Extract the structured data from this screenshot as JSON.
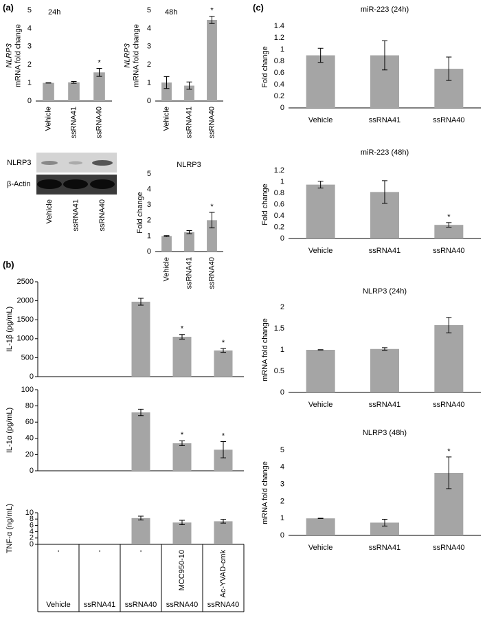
{
  "panel_labels": [
    "(a)",
    "(b)",
    "(c)"
  ],
  "blot": {
    "rows": [
      "NLRP3",
      "β-Actin"
    ],
    "lanes": [
      "Vehicle",
      "ssRNA41",
      "ssRNA40"
    ]
  },
  "chart_data": [
    {
      "type": "bar",
      "title": "24h",
      "ylabel": [
        "NLRP3",
        "mRNA fold change"
      ],
      "categories": [
        "Vehicle",
        "ssRNA41",
        "ssRNA40"
      ],
      "series": [
        {
          "color": "#a5a5a5",
          "values": [
            1,
            1.03,
            1.58
          ],
          "errors": [
            0.01,
            0.05,
            0.22
          ]
        }
      ],
      "significance": [
        null,
        null,
        "*"
      ],
      "ylim": [
        0,
        5
      ],
      "yticks": [
        0,
        1,
        2,
        3,
        4,
        5
      ]
    },
    {
      "type": "bar",
      "title": "48h",
      "ylabel": [
        "NLRP3",
        "mRNA fold change"
      ],
      "categories": [
        "Vehicle",
        "ssRNA41",
        "ssRNA40"
      ],
      "series": [
        {
          "color": "#a5a5a5",
          "values": [
            1.02,
            0.85,
            4.47
          ],
          "errors": [
            0.33,
            0.2,
            0.2
          ]
        }
      ],
      "significance": [
        null,
        null,
        "*"
      ],
      "ylim": [
        0,
        5
      ],
      "yticks": [
        0,
        1,
        2,
        3,
        4,
        5
      ]
    },
    {
      "type": "bar",
      "title": "NLRP3",
      "ylabel": [
        "Fold change"
      ],
      "categories": [
        "Vehicle",
        "ssRNA41",
        "ssRNA40"
      ],
      "series": [
        {
          "color": "#a5a5a5",
          "values": [
            1,
            1.25,
            2.02
          ],
          "errors": [
            0.03,
            0.1,
            0.5
          ]
        }
      ],
      "significance": [
        null,
        null,
        "*"
      ],
      "ylim": [
        0,
        5
      ],
      "yticks": [
        0,
        1,
        2,
        3,
        4,
        5
      ]
    },
    {
      "type": "bar",
      "ylabel": [
        "IL-1β (pg/mL)"
      ],
      "series": [
        {
          "color": "#a5a5a5",
          "values": [
            null,
            null,
            1975,
            1050,
            690
          ],
          "errors": [
            null,
            null,
            90,
            60,
            50
          ]
        }
      ],
      "significance": [
        null,
        null,
        null,
        "*",
        "*"
      ],
      "ylim": [
        0,
        2500
      ],
      "yticks": [
        0,
        500,
        1000,
        1500,
        2000,
        2500
      ]
    },
    {
      "type": "bar",
      "ylabel": [
        "IL-1α (pg/mL)"
      ],
      "series": [
        {
          "color": "#a5a5a5",
          "values": [
            null,
            null,
            72,
            34,
            26
          ],
          "errors": [
            null,
            null,
            4,
            3,
            10
          ]
        }
      ],
      "significance": [
        null,
        null,
        null,
        "*",
        "*"
      ],
      "ylim": [
        0,
        100
      ],
      "yticks": [
        0,
        20,
        40,
        60,
        80,
        100
      ]
    },
    {
      "type": "bar",
      "ylabel": [
        "TNF-α (ng/mL)"
      ],
      "series": [
        {
          "color": "#a5a5a5",
          "values": [
            null,
            null,
            8.3,
            6.9,
            7.3
          ],
          "errors": [
            null,
            null,
            0.6,
            0.7,
            0.6
          ]
        }
      ],
      "ylim": [
        0,
        10
      ],
      "yticks": [
        0,
        2,
        4,
        6,
        8,
        10
      ]
    },
    {
      "type": "bar",
      "title": "miR-223 (24h)",
      "ylabel": [
        "Fold change"
      ],
      "categories": [
        "Vehicle",
        "ssRNA41",
        "ssRNA40"
      ],
      "series": [
        {
          "color": "#a5a5a5",
          "values": [
            0.9,
            0.9,
            0.67
          ],
          "errors": [
            0.12,
            0.25,
            0.2
          ]
        }
      ],
      "ylim": [
        0,
        1.4
      ],
      "yticks": [
        0,
        0.2,
        0.4,
        0.6,
        0.8,
        1,
        1.2,
        1.4
      ]
    },
    {
      "type": "bar",
      "title": "miR-223 (48h)",
      "ylabel": [
        "Fold change"
      ],
      "categories": [
        "Vehicle",
        "ssRNA41",
        "ssRNA40"
      ],
      "series": [
        {
          "color": "#a5a5a5",
          "values": [
            0.95,
            0.82,
            0.24
          ],
          "errors": [
            0.06,
            0.2,
            0.04
          ]
        }
      ],
      "significance": [
        null,
        null,
        "*"
      ],
      "ylim": [
        0,
        1.2
      ],
      "yticks": [
        0,
        0.2,
        0.4,
        0.6,
        0.8,
        1,
        1.2
      ]
    },
    {
      "type": "bar",
      "title": "NLRP3 (24h)",
      "ylabel": [
        "mRNA fold change"
      ],
      "categories": [
        "Vehicle",
        "ssRNA41",
        "ssRNA40"
      ],
      "series": [
        {
          "color": "#a5a5a5",
          "values": [
            1,
            1.02,
            1.58
          ],
          "errors": [
            0.005,
            0.03,
            0.18
          ]
        }
      ],
      "ylim": [
        0,
        2
      ],
      "yticks": [
        0,
        0.5,
        1,
        1.5,
        2
      ]
    },
    {
      "type": "bar",
      "title": "NLRP3 (48h)",
      "ylabel": [
        "mRNA fold change"
      ],
      "categories": [
        "Vehicle",
        "ssRNA41",
        "ssRNA40"
      ],
      "series": [
        {
          "color": "#a5a5a5",
          "values": [
            1,
            0.75,
            3.67
          ],
          "errors": [
            0.01,
            0.2,
            0.93
          ]
        }
      ],
      "significance": [
        null,
        null,
        "*"
      ],
      "ylim": [
        0,
        5
      ],
      "yticks": [
        0,
        1,
        2,
        3,
        4,
        5
      ]
    }
  ],
  "table": {
    "treatment": [
      "-",
      "-",
      "-",
      "MCC950-10",
      "Ac-YVAD-cmk"
    ],
    "stimulus": [
      "Vehicle",
      "ssRNA41",
      "ssRNA40",
      "ssRNA40",
      "ssRNA40"
    ]
  }
}
